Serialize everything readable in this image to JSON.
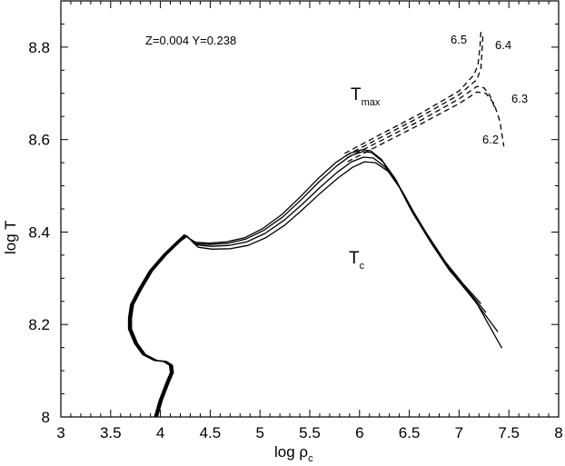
{
  "chart_data": {
    "type": "line",
    "xlabel": "log ρ",
    "xlabel_sub": "c",
    "ylabel": "log T",
    "xlim": [
      3,
      8
    ],
    "ylim": [
      8,
      8.9
    ],
    "xticks": [
      "3",
      "3.5",
      "4",
      "4.5",
      "5",
      "5.5",
      "6",
      "6.5",
      "7",
      "7.5",
      "8"
    ],
    "xtick_values": [
      3,
      3.5,
      4,
      4.5,
      5,
      5.5,
      6,
      6.5,
      7,
      7.5,
      8
    ],
    "yticks": [
      "8",
      "8.2",
      "8.4",
      "8.6",
      "8.8"
    ],
    "ytick_values": [
      8,
      8.2,
      8.4,
      8.6,
      8.8
    ],
    "annotations": {
      "composition": "Z=0.004 Y=0.238",
      "tmax_main": "T",
      "tmax_sub": "max",
      "tc_main": "T",
      "tc_sub": "c"
    },
    "series_labels": [
      "6.5",
      "6.4",
      "6.3",
      "6.2"
    ],
    "tc_series": [
      {
        "name": "6.5",
        "x": [
          3.94,
          3.99,
          4.06,
          4.1,
          4.09,
          4.03,
          3.94,
          3.82,
          3.74,
          3.68,
          3.68,
          3.7,
          3.78,
          3.89,
          4.03,
          4.17,
          4.24,
          4.29,
          4.35,
          4.49,
          4.67,
          4.85,
          5.03,
          5.22,
          5.4,
          5.58,
          5.76,
          5.9,
          6.02,
          6.11,
          6.22,
          6.36,
          6.49,
          6.68,
          6.86,
          7.04,
          7.22
        ],
        "y": [
          8.0,
          8.037,
          8.076,
          8.096,
          8.112,
          8.12,
          8.122,
          8.135,
          8.159,
          8.19,
          8.214,
          8.243,
          8.276,
          8.316,
          8.351,
          8.38,
          8.394,
          8.386,
          8.378,
          8.376,
          8.379,
          8.388,
          8.408,
          8.438,
          8.475,
          8.515,
          8.55,
          8.57,
          8.578,
          8.576,
          8.557,
          8.515,
          8.462,
          8.395,
          8.336,
          8.288,
          8.245
        ]
      },
      {
        "name": "6.4",
        "x": [
          3.95,
          4.0,
          4.07,
          4.11,
          4.1,
          4.04,
          3.95,
          3.83,
          3.75,
          3.69,
          3.69,
          3.71,
          3.79,
          3.9,
          4.04,
          4.18,
          4.25,
          4.3,
          4.36,
          4.5,
          4.68,
          4.86,
          5.04,
          5.23,
          5.41,
          5.59,
          5.77,
          5.91,
          6.03,
          6.12,
          6.23,
          6.37,
          6.5,
          6.69,
          6.87,
          7.05,
          7.27
        ],
        "y": [
          8.0,
          8.037,
          8.076,
          8.096,
          8.112,
          8.12,
          8.122,
          8.135,
          8.159,
          8.19,
          8.214,
          8.243,
          8.276,
          8.316,
          8.351,
          8.38,
          8.393,
          8.384,
          8.375,
          8.373,
          8.376,
          8.385,
          8.404,
          8.433,
          8.469,
          8.508,
          8.543,
          8.565,
          8.574,
          8.572,
          8.553,
          8.51,
          8.455,
          8.388,
          8.33,
          8.283,
          8.226
        ]
      },
      {
        "name": "6.3",
        "x": [
          3.96,
          4.01,
          4.08,
          4.12,
          4.11,
          4.05,
          3.96,
          3.84,
          3.76,
          3.7,
          3.7,
          3.72,
          3.8,
          3.91,
          4.05,
          4.19,
          4.26,
          4.31,
          4.37,
          4.51,
          4.69,
          4.87,
          5.05,
          5.24,
          5.42,
          5.6,
          5.78,
          5.92,
          6.04,
          6.14,
          6.26,
          6.4,
          6.53,
          6.72,
          6.9,
          7.1,
          7.39
        ],
        "y": [
          8.0,
          8.037,
          8.076,
          8.096,
          8.112,
          8.12,
          8.122,
          8.135,
          8.159,
          8.19,
          8.214,
          8.243,
          8.276,
          8.316,
          8.351,
          8.38,
          8.392,
          8.382,
          8.372,
          8.369,
          8.371,
          8.379,
          8.397,
          8.425,
          8.459,
          8.496,
          8.53,
          8.552,
          8.562,
          8.56,
          8.54,
          8.497,
          8.443,
          8.376,
          8.318,
          8.268,
          8.184
        ]
      },
      {
        "name": "6.2",
        "x": [
          3.97,
          4.02,
          4.09,
          4.13,
          4.12,
          4.06,
          3.97,
          3.85,
          3.77,
          3.71,
          3.71,
          3.73,
          3.81,
          3.92,
          4.06,
          4.2,
          4.27,
          4.32,
          4.38,
          4.52,
          4.7,
          4.88,
          5.06,
          5.25,
          5.43,
          5.61,
          5.79,
          5.93,
          6.05,
          6.16,
          6.29,
          6.43,
          6.57,
          6.76,
          6.95,
          7.18,
          7.43
        ],
        "y": [
          8.0,
          8.037,
          8.076,
          8.096,
          8.112,
          8.12,
          8.122,
          8.135,
          8.159,
          8.19,
          8.214,
          8.243,
          8.276,
          8.316,
          8.351,
          8.38,
          8.391,
          8.379,
          8.367,
          8.363,
          8.364,
          8.371,
          8.388,
          8.415,
          8.449,
          8.485,
          8.518,
          8.54,
          8.552,
          8.55,
          8.531,
          8.488,
          8.433,
          8.366,
          8.306,
          8.245,
          8.149
        ]
      }
    ],
    "tmax_series": [
      {
        "name": "6.5",
        "x": [
          5.85,
          6.2,
          6.6,
          7.0,
          7.15,
          7.19,
          7.21,
          7.22
        ],
        "y": [
          8.57,
          8.61,
          8.655,
          8.705,
          8.74,
          8.762,
          8.8,
          8.835
        ]
      },
      {
        "name": "6.4",
        "x": [
          5.86,
          6.2,
          6.6,
          7.0,
          7.18,
          7.22,
          7.23,
          7.24
        ],
        "y": [
          8.565,
          8.603,
          8.648,
          8.697,
          8.73,
          8.755,
          8.79,
          8.828
        ]
      },
      {
        "name": "6.3",
        "x": [
          5.87,
          6.2,
          6.6,
          7.0,
          7.18,
          7.25,
          7.31,
          7.36
        ],
        "y": [
          8.56,
          8.596,
          8.64,
          8.688,
          8.715,
          8.712,
          8.695,
          8.668
        ]
      },
      {
        "name": "6.2",
        "x": [
          5.88,
          6.2,
          6.6,
          7.0,
          7.18,
          7.27,
          7.35,
          7.41,
          7.45
        ],
        "y": [
          8.552,
          8.588,
          8.632,
          8.678,
          8.703,
          8.7,
          8.678,
          8.64,
          8.585
        ]
      }
    ]
  }
}
